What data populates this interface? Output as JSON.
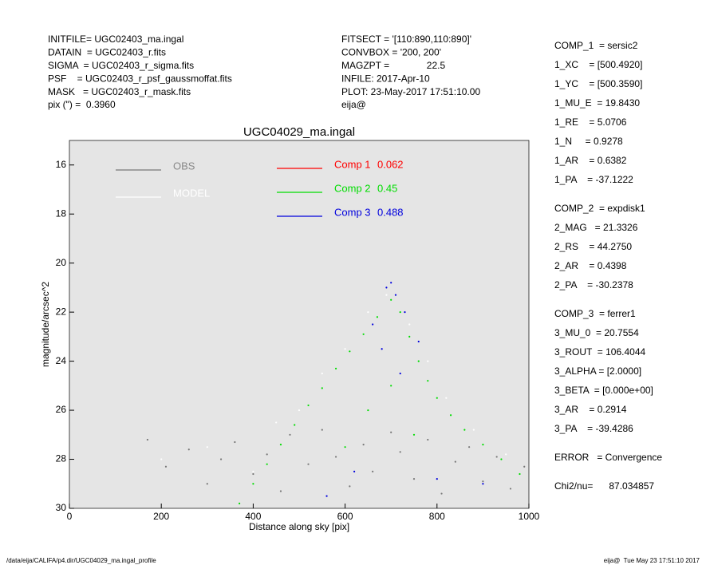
{
  "header_left": [
    "INITFILE= UGC02403_ma.ingal",
    "DATAIN  = UGC02403_r.fits",
    "SIGMA  = UGC02403_r_sigma.fits",
    "PSF    = UGC02403_r_psf_gaussmoffat.fits",
    "MASK   = UGC02403_r_mask.fits",
    "pix (\") =  0.3960"
  ],
  "header_mid": [
    "FITSECT = '[110:890,110:890]'",
    "CONVBOX = '200, 200'",
    "MAGZPT =              22.5",
    "INFILE: 2017-Apr-10",
    "PLOT: 23-May-2017 17:51:10.00",
    "eija@"
  ],
  "params": [
    [
      "COMP_1  = sersic2",
      "1_XC    = [500.4920]",
      "1_YC    = [500.3590]",
      "1_MU_E  = 19.8430",
      "1_RE    = 5.0706",
      "1_N     = 0.9278",
      "1_AR    = 0.6382",
      "1_PA    = -37.1222"
    ],
    [
      "COMP_2  = expdisk1",
      "2_MAG   = 21.3326",
      "2_RS    = 44.2750",
      "2_AR    = 0.4398",
      "2_PA    = -30.2378"
    ],
    [
      "COMP_3  = ferrer1",
      "3_MU_0  = 20.7554",
      "3_ROUT  = 106.4044",
      "3_ALPHA = [2.0000]",
      "3_BETA  = [0.000e+00]",
      "3_AR    = 0.2914",
      "3_PA    = -39.4286"
    ],
    [
      "ERROR   = Convergence"
    ],
    [
      "Chi2/nu=      87.034857"
    ]
  ],
  "footer_left": "/data/eija/CALIFA/p4.dir/UGC04029_ma.ingal_profile",
  "footer_right": "eija@  Tue May 23 17:51:10 2017",
  "chart_data": {
    "type": "scatter",
    "title": "UGC04029_ma.ingal",
    "x_label": "Distance along sky [pix]",
    "y_label": "magnitude/arcsec^2",
    "xlim": [
      0,
      1000
    ],
    "ylim": [
      15,
      30
    ],
    "xticks": [
      0,
      200,
      400,
      600,
      800,
      1000
    ],
    "yticks": [
      16,
      18,
      20,
      22,
      24,
      26,
      28,
      30
    ],
    "y_inverted": true,
    "background": "#e5e5e5",
    "series": [
      {
        "name": "OBS",
        "color": "#777777",
        "x": [
          170,
          210,
          260,
          300,
          330,
          360,
          400,
          430,
          460,
          480,
          520,
          550,
          580,
          610,
          640,
          660,
          700,
          720,
          750,
          780,
          810,
          840,
          870,
          900,
          930,
          960,
          990
        ],
        "y": [
          27.2,
          28.3,
          27.6,
          29.0,
          28.0,
          27.3,
          28.6,
          27.8,
          29.3,
          27.0,
          28.2,
          26.8,
          27.9,
          29.1,
          27.4,
          28.5,
          26.9,
          27.7,
          28.8,
          27.2,
          29.4,
          28.1,
          27.5,
          28.9,
          27.9,
          29.2,
          28.3
        ]
      },
      {
        "name": "MODEL",
        "color": "#ffffff",
        "x": [
          200,
          300,
          400,
          450,
          500,
          550,
          600,
          650,
          690,
          740,
          780,
          820,
          880,
          950
        ],
        "y": [
          28.0,
          27.5,
          28.5,
          26.5,
          26.0,
          24.5,
          23.5,
          22.0,
          21.3,
          22.5,
          24.0,
          25.5,
          26.8,
          27.8
        ]
      },
      {
        "name": "Comp 1",
        "fraction": 0.062,
        "color": "#ff0000",
        "x": [],
        "y": []
      },
      {
        "name": "Comp 2",
        "fraction": 0.45,
        "color": "#00dd00",
        "x": [
          370,
          400,
          430,
          460,
          490,
          520,
          550,
          580,
          610,
          640,
          670,
          700,
          720,
          740,
          760,
          780,
          800,
          830,
          860,
          900,
          940,
          980,
          600,
          650,
          700,
          750
        ],
        "y": [
          29.8,
          29.0,
          28.2,
          27.4,
          26.6,
          25.8,
          25.1,
          24.3,
          23.6,
          22.9,
          22.2,
          21.5,
          22.0,
          23.0,
          24.0,
          24.8,
          25.5,
          26.2,
          26.8,
          27.4,
          28.0,
          28.6,
          27.5,
          26.0,
          25.0,
          27.0
        ]
      },
      {
        "name": "Comp 3",
        "fraction": 0.488,
        "color": "#0000dd",
        "x": [
          660,
          690,
          700,
          710,
          730,
          680,
          720,
          760,
          620,
          800,
          560,
          900
        ],
        "y": [
          22.5,
          21.0,
          20.8,
          21.3,
          22.0,
          23.5,
          24.5,
          23.2,
          28.5,
          28.8,
          29.5,
          29.0
        ]
      }
    ]
  }
}
